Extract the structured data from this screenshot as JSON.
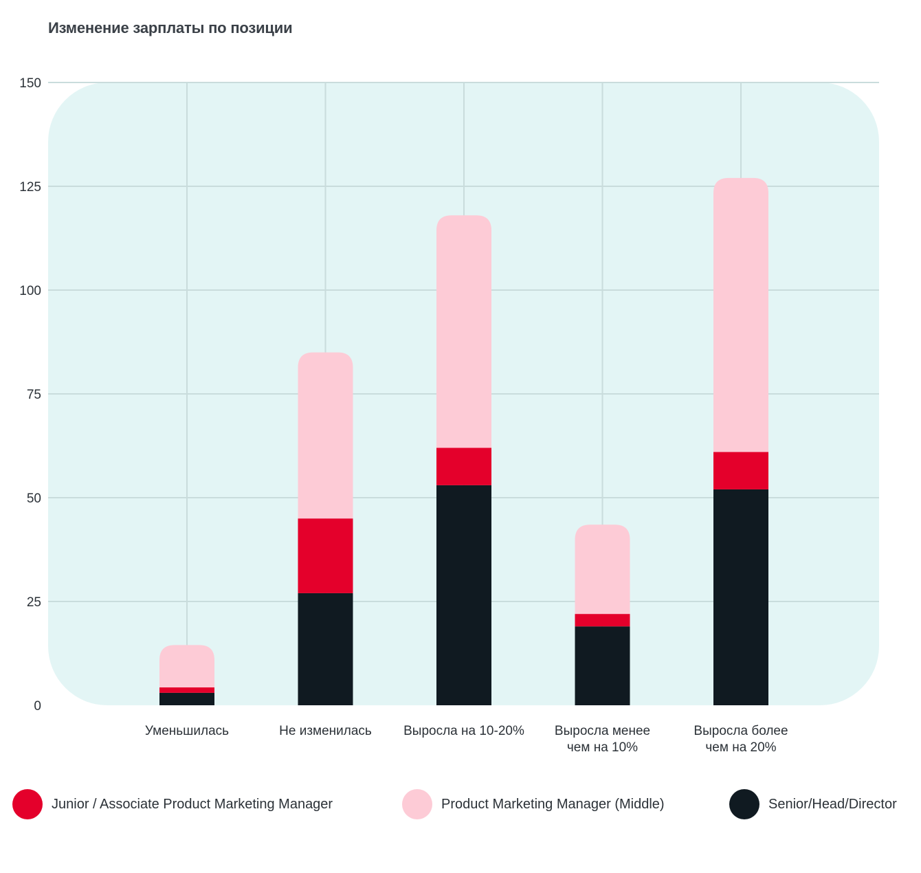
{
  "chart_data": {
    "type": "bar",
    "stacked": true,
    "title": "Изменение зарплаты по позиции",
    "xlabel": "",
    "ylabel": "",
    "ylim": [
      0,
      150
    ],
    "yticks": [
      "0",
      "25",
      "50",
      "75",
      "100",
      "125",
      "150"
    ],
    "grid": true,
    "legend_position": "bottom",
    "categories": [
      [
        "Уменьшилась"
      ],
      [
        "Не изменилась"
      ],
      [
        "Выросла на 10-20%"
      ],
      [
        "Выросла менее",
        "чем на 10%"
      ],
      [
        "Выросла более",
        "чем на 20%"
      ]
    ],
    "series": [
      {
        "name": "Senior/Head/Director",
        "color": "#101a21",
        "values": [
          3,
          27,
          53,
          19,
          52
        ]
      },
      {
        "name": "Junior / Associate Product Marketing Manager",
        "color": "#e4002b",
        "values": [
          1.3,
          18,
          9,
          3,
          9
        ]
      },
      {
        "name": "Product Marketing Manager (Middle)",
        "color": "#fdcbd6",
        "values": [
          10.2,
          40,
          56,
          21.5,
          66
        ]
      }
    ],
    "legend_order": [
      1,
      2,
      0
    ],
    "colors": {
      "plot_background": "#e3f5f5",
      "grid": "#c9dcdc"
    }
  }
}
